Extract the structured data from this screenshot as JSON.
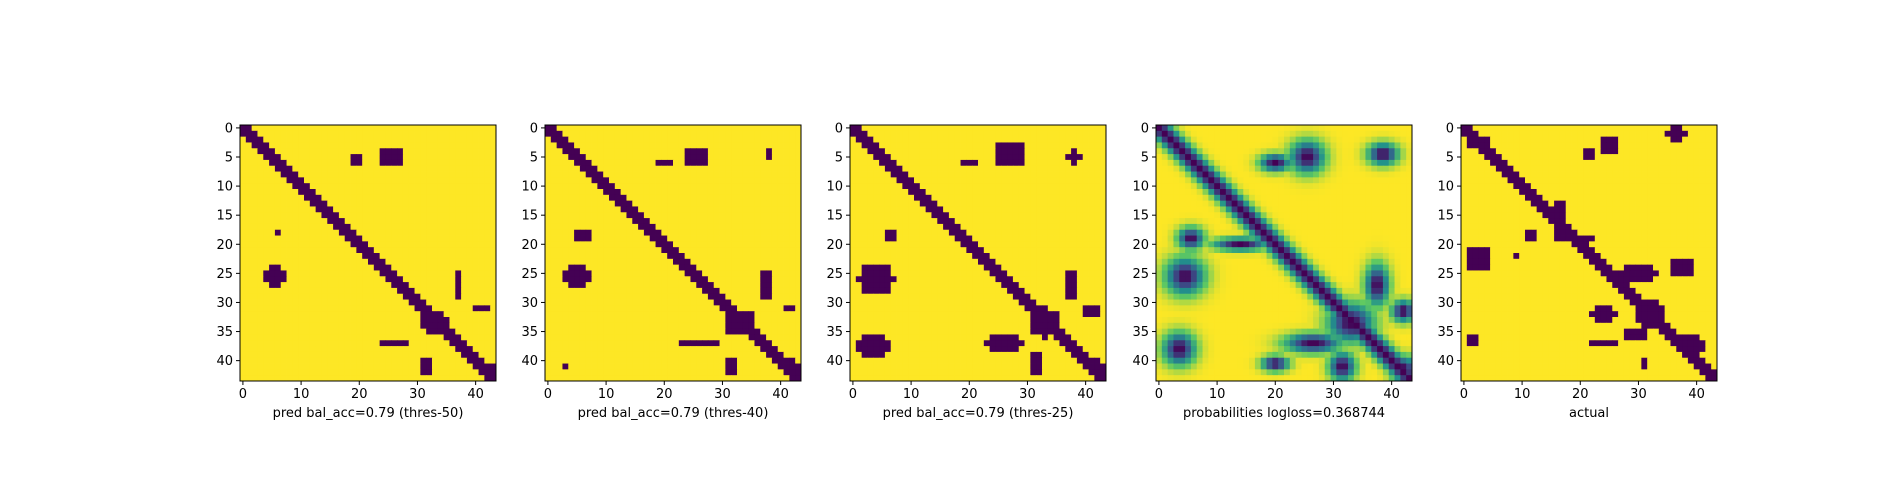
{
  "figure": {
    "background": "#ffffff"
  },
  "chart_data": [
    {
      "type": "heatmap",
      "title": "",
      "xlabel": "pred bal_acc=0.79 (thres-50)",
      "ylabel": "",
      "grid_size": 44,
      "xlim": [
        0,
        43
      ],
      "ylim": [
        43,
        0
      ],
      "xticks": [
        0,
        10,
        20,
        30,
        40
      ],
      "yticks": [
        0,
        5,
        10,
        15,
        20,
        25,
        30,
        35,
        40
      ],
      "colormap": "viridis",
      "binary": true,
      "colors": {
        "low": "#440154",
        "high": "#fde725"
      },
      "grid": false,
      "diagonal_halfwidth": 1.6,
      "blobs": [
        {
          "cx": 25.5,
          "cy": 5.0,
          "rx": 2.6,
          "ry": 2.2
        },
        {
          "cx": 19.5,
          "cy": 5.5,
          "rx": 1.3,
          "ry": 0.9
        },
        {
          "cx": 6.0,
          "cy": 18.0,
          "rx": 1.2,
          "ry": 1.0
        },
        {
          "cx": 5.5,
          "cy": 25.5,
          "rx": 2.6,
          "ry": 2.2
        },
        {
          "cx": 33.0,
          "cy": 33.5,
          "rx": 3.2,
          "ry": 2.8
        },
        {
          "cx": 37.0,
          "cy": 27.0,
          "rx": 1.2,
          "ry": 3.2
        },
        {
          "cx": 26.0,
          "cy": 37.0,
          "rx": 3.8,
          "ry": 1.1
        },
        {
          "cx": 41.0,
          "cy": 31.0,
          "rx": 1.4,
          "ry": 1.2
        },
        {
          "cx": 31.5,
          "cy": 41.0,
          "rx": 1.2,
          "ry": 1.8
        },
        {
          "cx": 42.0,
          "cy": 41.5,
          "rx": 1.8,
          "ry": 1.8
        }
      ]
    },
    {
      "type": "heatmap",
      "title": "",
      "xlabel": "pred bal_acc=0.79 (thres-40)",
      "ylabel": "",
      "grid_size": 44,
      "xlim": [
        0,
        43
      ],
      "ylim": [
        43,
        0
      ],
      "xticks": [
        0,
        10,
        20,
        30,
        40
      ],
      "yticks": [
        0,
        5,
        10,
        15,
        20,
        25,
        30,
        35,
        40
      ],
      "colormap": "viridis",
      "binary": true,
      "colors": {
        "low": "#440154",
        "high": "#fde725"
      },
      "grid": false,
      "diagonal_halfwidth": 1.7,
      "blobs": [
        {
          "cx": 25.5,
          "cy": 5.0,
          "rx": 2.9,
          "ry": 2.5
        },
        {
          "cx": 20.0,
          "cy": 6.0,
          "rx": 2.2,
          "ry": 1.0
        },
        {
          "cx": 38.0,
          "cy": 4.5,
          "rx": 0.8,
          "ry": 0.8
        },
        {
          "cx": 6.0,
          "cy": 18.5,
          "rx": 1.6,
          "ry": 1.4
        },
        {
          "cx": 5.0,
          "cy": 25.5,
          "rx": 3.0,
          "ry": 2.6
        },
        {
          "cx": 33.0,
          "cy": 33.5,
          "rx": 3.6,
          "ry": 3.0
        },
        {
          "cx": 37.5,
          "cy": 27.0,
          "rx": 1.4,
          "ry": 3.4
        },
        {
          "cx": 26.0,
          "cy": 37.0,
          "rx": 4.4,
          "ry": 1.3
        },
        {
          "cx": 41.5,
          "cy": 31.0,
          "rx": 1.6,
          "ry": 1.3
        },
        {
          "cx": 31.5,
          "cy": 41.0,
          "rx": 1.5,
          "ry": 2.0
        },
        {
          "cx": 42.0,
          "cy": 41.5,
          "rx": 2.0,
          "ry": 2.0
        },
        {
          "cx": 3.0,
          "cy": 41.0,
          "rx": 1.2,
          "ry": 0.8
        }
      ]
    },
    {
      "type": "heatmap",
      "title": "",
      "xlabel": "pred bal_acc=0.79 (thres-25)",
      "ylabel": "",
      "grid_size": 44,
      "xlim": [
        0,
        43
      ],
      "ylim": [
        43,
        0
      ],
      "xticks": [
        0,
        10,
        20,
        30,
        40
      ],
      "yticks": [
        0,
        5,
        10,
        15,
        20,
        25,
        30,
        35,
        40
      ],
      "colormap": "viridis",
      "binary": true,
      "colors": {
        "low": "#440154",
        "high": "#fde725"
      },
      "grid": false,
      "diagonal_halfwidth": 1.9,
      "blobs": [
        {
          "cx": 27.0,
          "cy": 4.5,
          "rx": 3.5,
          "ry": 3.2
        },
        {
          "cx": 20.0,
          "cy": 6.0,
          "rx": 2.6,
          "ry": 1.3
        },
        {
          "cx": 38.0,
          "cy": 5.0,
          "rx": 2.4,
          "ry": 1.5
        },
        {
          "cx": 6.5,
          "cy": 18.5,
          "rx": 1.8,
          "ry": 1.8
        },
        {
          "cx": 4.0,
          "cy": 26.0,
          "rx": 4.2,
          "ry": 3.6
        },
        {
          "cx": 33.0,
          "cy": 33.5,
          "rx": 4.0,
          "ry": 3.4
        },
        {
          "cx": 37.5,
          "cy": 27.0,
          "rx": 1.8,
          "ry": 3.8
        },
        {
          "cx": 26.0,
          "cy": 37.0,
          "rx": 5.0,
          "ry": 1.6
        },
        {
          "cx": 41.0,
          "cy": 31.5,
          "rx": 2.0,
          "ry": 1.6
        },
        {
          "cx": 31.5,
          "cy": 40.5,
          "rx": 1.9,
          "ry": 2.4
        },
        {
          "cx": 42.0,
          "cy": 41.5,
          "rx": 2.2,
          "ry": 2.2
        },
        {
          "cx": 3.5,
          "cy": 37.5,
          "rx": 3.4,
          "ry": 3.2
        }
      ]
    },
    {
      "type": "heatmap",
      "title": "",
      "xlabel": "probabilities logloss=0.368744",
      "ylabel": "",
      "grid_size": 44,
      "xlim": [
        0,
        43
      ],
      "ylim": [
        43,
        0
      ],
      "xticks": [
        0,
        10,
        20,
        30,
        40
      ],
      "yticks": [
        0,
        5,
        10,
        15,
        20,
        25,
        30,
        35,
        40
      ],
      "colormap": "viridis",
      "binary": false,
      "colors": {
        "low": "#440154",
        "high": "#fde725"
      },
      "grid": false,
      "diagonal_halfwidth": 2.2,
      "blobs": [
        {
          "cx": 25.5,
          "cy": 5.0,
          "rx": 3.2,
          "ry": 3.0
        },
        {
          "cx": 20.0,
          "cy": 6.0,
          "rx": 2.8,
          "ry": 1.6
        },
        {
          "cx": 38.5,
          "cy": 4.5,
          "rx": 2.8,
          "ry": 2.0
        },
        {
          "cx": 5.5,
          "cy": 19.0,
          "rx": 2.4,
          "ry": 2.0
        },
        {
          "cx": 4.5,
          "cy": 25.5,
          "rx": 3.6,
          "ry": 3.4
        },
        {
          "cx": 33.0,
          "cy": 33.5,
          "rx": 4.2,
          "ry": 3.6
        },
        {
          "cx": 37.5,
          "cy": 27.0,
          "rx": 2.2,
          "ry": 3.8
        },
        {
          "cx": 26.5,
          "cy": 37.0,
          "rx": 5.2,
          "ry": 1.8
        },
        {
          "cx": 42.0,
          "cy": 31.5,
          "rx": 2.2,
          "ry": 2.0
        },
        {
          "cx": 31.5,
          "cy": 41.0,
          "rx": 2.4,
          "ry": 2.6
        },
        {
          "cx": 42.0,
          "cy": 41.5,
          "rx": 2.4,
          "ry": 2.4
        },
        {
          "cx": 3.5,
          "cy": 38.0,
          "rx": 3.0,
          "ry": 3.0
        },
        {
          "cx": 14.0,
          "cy": 20.0,
          "rx": 5.0,
          "ry": 1.2
        },
        {
          "cx": 20.0,
          "cy": 40.5,
          "rx": 2.5,
          "ry": 1.4
        }
      ]
    },
    {
      "type": "heatmap",
      "title": "",
      "xlabel": "actual",
      "ylabel": "",
      "grid_size": 44,
      "xlim": [
        0,
        43
      ],
      "ylim": [
        43,
        0
      ],
      "xticks": [
        0,
        10,
        20,
        30,
        40
      ],
      "yticks": [
        0,
        5,
        10,
        15,
        20,
        25,
        30,
        35,
        40
      ],
      "colormap": "viridis",
      "binary": true,
      "colors": {
        "low": "#440154",
        "high": "#fde725"
      },
      "grid": false,
      "diagonal_halfwidth": 1.5,
      "blobs": [
        {
          "cx": 2.5,
          "cy": 2.5,
          "rx": 2.4,
          "ry": 2.0
        },
        {
          "cx": 36.5,
          "cy": 1.0,
          "rx": 2.2,
          "ry": 1.5
        },
        {
          "cx": 25.0,
          "cy": 3.0,
          "rx": 2.2,
          "ry": 1.8
        },
        {
          "cx": 21.5,
          "cy": 4.5,
          "rx": 2.6,
          "ry": 1.0
        },
        {
          "cx": 16.5,
          "cy": 15.5,
          "rx": 2.0,
          "ry": 4.0
        },
        {
          "cx": 19.0,
          "cy": 19.0,
          "rx": 4.0,
          "ry": 1.2
        },
        {
          "cx": 11.5,
          "cy": 18.5,
          "rx": 1.6,
          "ry": 1.2
        },
        {
          "cx": 2.5,
          "cy": 22.5,
          "rx": 3.0,
          "ry": 3.0
        },
        {
          "cx": 9.0,
          "cy": 22.0,
          "rx": 1.2,
          "ry": 1.0
        },
        {
          "cx": 30.0,
          "cy": 25.0,
          "rx": 4.0,
          "ry": 2.5
        },
        {
          "cx": 37.5,
          "cy": 24.0,
          "rx": 2.6,
          "ry": 2.5
        },
        {
          "cx": 24.0,
          "cy": 32.0,
          "rx": 3.6,
          "ry": 1.6
        },
        {
          "cx": 32.0,
          "cy": 32.0,
          "rx": 3.2,
          "ry": 3.0
        },
        {
          "cx": 29.5,
          "cy": 35.5,
          "rx": 3.0,
          "ry": 1.4
        },
        {
          "cx": 24.0,
          "cy": 37.0,
          "rx": 3.0,
          "ry": 1.2
        },
        {
          "cx": 39.0,
          "cy": 37.5,
          "rx": 3.0,
          "ry": 3.0
        },
        {
          "cx": 41.5,
          "cy": 41.5,
          "rx": 2.0,
          "ry": 2.0
        },
        {
          "cx": 1.5,
          "cy": 36.5,
          "rx": 1.6,
          "ry": 1.6
        },
        {
          "cx": 31.0,
          "cy": 40.5,
          "rx": 1.5,
          "ry": 0.9
        }
      ]
    }
  ]
}
